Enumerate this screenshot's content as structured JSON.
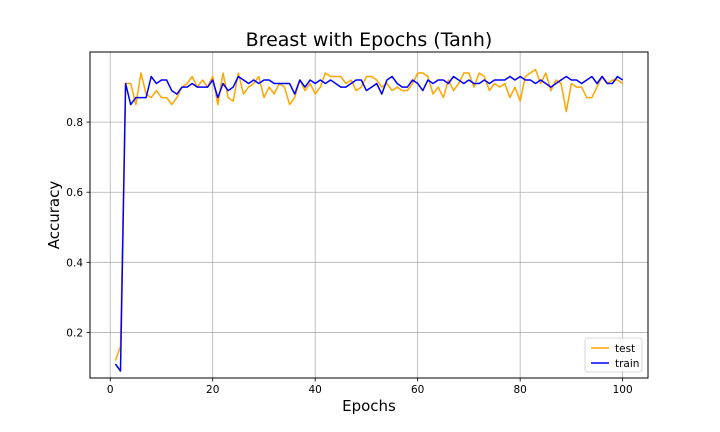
{
  "chart_data": {
    "type": "line",
    "title": "Breast with Epochs (Tanh)",
    "xlabel": "Epochs",
    "ylabel": "Accuracy",
    "xlim": [
      -3.95,
      104.95
    ],
    "ylim": [
      0.07,
      1.0
    ],
    "xticks": [
      0,
      20,
      40,
      60,
      80,
      100
    ],
    "xtick_labels": [
      "0",
      "20",
      "40",
      "60",
      "80",
      "100"
    ],
    "yticks": [
      0.2,
      0.4,
      0.6,
      0.8
    ],
    "ytick_labels": [
      "0.2",
      "0.4",
      "0.6",
      "0.8"
    ],
    "grid": true,
    "legend_position": "lower-right",
    "x": [
      1,
      2,
      3,
      4,
      5,
      6,
      7,
      8,
      9,
      10,
      11,
      12,
      13,
      14,
      15,
      16,
      17,
      18,
      19,
      20,
      21,
      22,
      23,
      24,
      25,
      26,
      27,
      28,
      29,
      30,
      31,
      32,
      33,
      34,
      35,
      36,
      37,
      38,
      39,
      40,
      41,
      42,
      43,
      44,
      45,
      46,
      47,
      48,
      49,
      50,
      51,
      52,
      53,
      54,
      55,
      56,
      57,
      58,
      59,
      60,
      61,
      62,
      63,
      64,
      65,
      66,
      67,
      68,
      69,
      70,
      71,
      72,
      73,
      74,
      75,
      76,
      77,
      78,
      79,
      80,
      81,
      82,
      83,
      84,
      85,
      86,
      87,
      88,
      89,
      90,
      91,
      92,
      93,
      94,
      95,
      96,
      97,
      98,
      99,
      100
    ],
    "series": [
      {
        "name": "test",
        "color": "#FFA500",
        "values": [
          0.12,
          0.16,
          0.91,
          0.91,
          0.85,
          0.94,
          0.88,
          0.87,
          0.89,
          0.87,
          0.87,
          0.85,
          0.87,
          0.9,
          0.91,
          0.93,
          0.9,
          0.92,
          0.9,
          0.93,
          0.85,
          0.94,
          0.87,
          0.86,
          0.94,
          0.88,
          0.9,
          0.91,
          0.93,
          0.87,
          0.9,
          0.88,
          0.91,
          0.9,
          0.85,
          0.87,
          0.92,
          0.89,
          0.91,
          0.88,
          0.9,
          0.94,
          0.93,
          0.93,
          0.93,
          0.91,
          0.92,
          0.89,
          0.9,
          0.93,
          0.93,
          0.92,
          0.9,
          0.91,
          0.89,
          0.9,
          0.89,
          0.89,
          0.91,
          0.94,
          0.94,
          0.93,
          0.88,
          0.9,
          0.87,
          0.92,
          0.89,
          0.91,
          0.94,
          0.94,
          0.9,
          0.94,
          0.93,
          0.89,
          0.91,
          0.9,
          0.91,
          0.87,
          0.9,
          0.86,
          0.93,
          0.94,
          0.95,
          0.91,
          0.94,
          0.89,
          0.92,
          0.91,
          0.83,
          0.91,
          0.9,
          0.9,
          0.87,
          0.87,
          0.9,
          0.93,
          0.91,
          0.92,
          0.92,
          0.91
        ]
      },
      {
        "name": "train",
        "color": "#0000FF",
        "values": [
          0.11,
          0.09,
          0.91,
          0.85,
          0.87,
          0.87,
          0.87,
          0.93,
          0.91,
          0.92,
          0.92,
          0.89,
          0.88,
          0.9,
          0.9,
          0.91,
          0.9,
          0.9,
          0.9,
          0.92,
          0.87,
          0.91,
          0.89,
          0.9,
          0.93,
          0.92,
          0.91,
          0.92,
          0.91,
          0.92,
          0.92,
          0.91,
          0.91,
          0.91,
          0.91,
          0.88,
          0.92,
          0.9,
          0.92,
          0.91,
          0.92,
          0.91,
          0.92,
          0.91,
          0.9,
          0.9,
          0.91,
          0.92,
          0.92,
          0.89,
          0.9,
          0.91,
          0.88,
          0.92,
          0.93,
          0.91,
          0.9,
          0.9,
          0.92,
          0.91,
          0.89,
          0.92,
          0.91,
          0.92,
          0.92,
          0.91,
          0.93,
          0.92,
          0.91,
          0.92,
          0.91,
          0.91,
          0.92,
          0.91,
          0.92,
          0.92,
          0.92,
          0.93,
          0.92,
          0.93,
          0.92,
          0.92,
          0.91,
          0.92,
          0.91,
          0.9,
          0.91,
          0.92,
          0.93,
          0.92,
          0.92,
          0.91,
          0.92,
          0.93,
          0.91,
          0.93,
          0.91,
          0.91,
          0.93,
          0.92
        ]
      }
    ]
  }
}
